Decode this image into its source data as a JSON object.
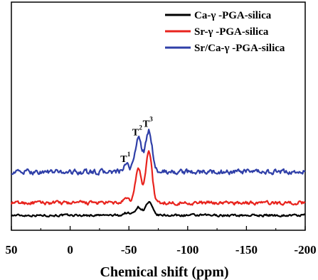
{
  "chart_data": {
    "type": "line",
    "xlabel": "Chemical shift (ppm)",
    "ylabel": "",
    "xlim": [
      50,
      -200
    ],
    "x_ticks": [
      50,
      0,
      -50,
      -100,
      -150,
      -200
    ],
    "x_tick_labels": [
      "50",
      "0",
      "-50",
      "-100",
      "-150",
      "-200"
    ],
    "legend_position": "top-right",
    "grid": false,
    "series": [
      {
        "name": "Ca-γ  -PGA-silica",
        "color": "#000000",
        "baseline": 0,
        "noise": 0.8,
        "peaks": [
          {
            "position": -48,
            "height": 7,
            "width": 2.5
          },
          {
            "position": -58,
            "height": 23,
            "width": 2.8
          },
          {
            "position": -67,
            "height": 36,
            "width": 2.8
          }
        ]
      },
      {
        "name": "Sr-γ  -PGA-silica",
        "color": "#e8231d",
        "baseline": 35,
        "noise": 1.3,
        "peaks": [
          {
            "position": -48,
            "height": 10,
            "width": 2.5
          },
          {
            "position": -58,
            "height": 95,
            "width": 2.6
          },
          {
            "position": -67,
            "height": 148,
            "width": 2.6
          }
        ]
      },
      {
        "name": "Sr/Ca-γ  -PGA-silica",
        "color": "#2f3fa8",
        "baseline": 122,
        "noise": 1.8,
        "peaks": [
          {
            "position": -48,
            "height": 18,
            "width": 2.5
          },
          {
            "position": -58,
            "height": 95,
            "width": 2.8
          },
          {
            "position": -67,
            "height": 115,
            "width": 2.8
          }
        ]
      }
    ],
    "annotations": [
      {
        "base": "T",
        "sup": "1",
        "x": -48,
        "y": 150
      },
      {
        "base": "T",
        "sup": "2",
        "x": -58,
        "y": 225
      },
      {
        "base": "T",
        "sup": "3",
        "x": -67,
        "y": 249
      }
    ]
  }
}
